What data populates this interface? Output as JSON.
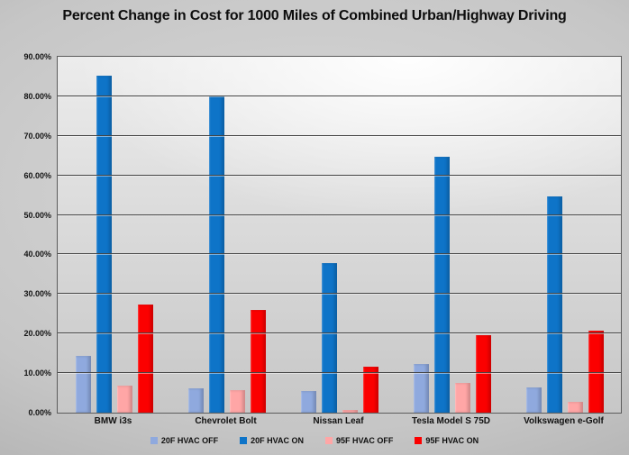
{
  "chart_data": {
    "type": "bar",
    "title": "Percent Change in Cost for 1000 Miles of Combined Urban/Highway Driving",
    "xlabel": "",
    "ylabel": "",
    "categories": [
      "BMW i3s",
      "Chevrolet Bolt",
      "Nissan Leaf",
      "Tesla Model S 75D",
      "Volkswagen e-Golf"
    ],
    "series": [
      {
        "name": "20F HVAC OFF",
        "color": "#8FA9DE",
        "values": [
          14.4,
          6.2,
          5.4,
          12.4,
          6.4
        ]
      },
      {
        "name": "20F HVAC ON",
        "color": "#0E74C8",
        "values": [
          85.3,
          80.0,
          37.8,
          64.7,
          54.8
        ]
      },
      {
        "name": "95F HVAC OFF",
        "color": "#FFA6A6",
        "values": [
          6.9,
          5.6,
          0.8,
          7.5,
          2.7
        ]
      },
      {
        "name": "95F HVAC ON",
        "color": "#FB0000",
        "values": [
          27.4,
          26.0,
          11.6,
          19.6,
          20.7
        ]
      }
    ],
    "ylim": [
      0,
      90
    ],
    "ytick_step": 10,
    "ytick_labels": [
      "0.00%",
      "10.00%",
      "20.00%",
      "30.00%",
      "40.00%",
      "50.00%",
      "60.00%",
      "70.00%",
      "80.00%",
      "90.00%"
    ],
    "grid": true,
    "legend_position": "bottom"
  }
}
